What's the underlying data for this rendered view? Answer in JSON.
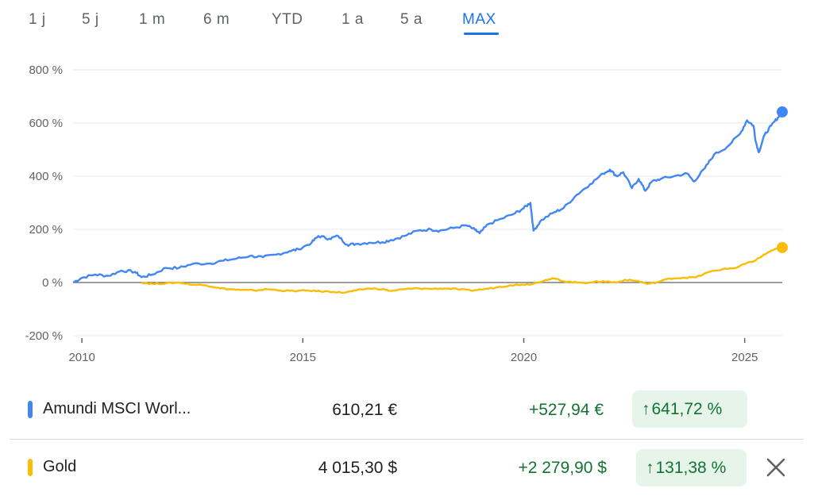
{
  "tabs": [
    {
      "label": "1 j",
      "active": false
    },
    {
      "label": "5 j",
      "active": false
    },
    {
      "label": "1 m",
      "active": false
    },
    {
      "label": "6 m",
      "active": false
    },
    {
      "label": "YTD",
      "active": false
    },
    {
      "label": "1 a",
      "active": false
    },
    {
      "label": "5 a",
      "active": false
    },
    {
      "label": "MAX",
      "active": true
    }
  ],
  "colors": {
    "accent": "#1a73e8",
    "series_msci": "#4285f4",
    "series_gold": "#fbbc04",
    "positive": "#137333",
    "positive_bg": "#e6f4ea"
  },
  "chart_data": {
    "type": "line",
    "title": "",
    "xlabel": "",
    "ylabel": "",
    "x_ticks": [
      2010,
      2015,
      2020,
      2025
    ],
    "x_range": [
      2009.8,
      2025.85
    ],
    "y_ticks": [
      800,
      600,
      400,
      200,
      0,
      -200
    ],
    "y_tick_labels": [
      "800 %",
      "600 %",
      "400 %",
      "200 %",
      "0 %",
      "-200 %"
    ],
    "ylim": [
      -200,
      800
    ],
    "grid": true,
    "zero_line": true,
    "series": [
      {
        "name": "Amundi MSCI Worl...",
        "color": "#4285f4",
        "points": [
          [
            2009.8,
            0
          ],
          [
            2010.0,
            18
          ],
          [
            2010.3,
            30
          ],
          [
            2010.6,
            25
          ],
          [
            2010.9,
            45
          ],
          [
            2011.2,
            40
          ],
          [
            2011.35,
            20
          ],
          [
            2011.6,
            30
          ],
          [
            2011.9,
            55
          ],
          [
            2012.2,
            55
          ],
          [
            2012.5,
            70
          ],
          [
            2012.9,
            72
          ],
          [
            2013.2,
            82
          ],
          [
            2013.5,
            90
          ],
          [
            2013.8,
            100
          ],
          [
            2014.1,
            95
          ],
          [
            2014.4,
            105
          ],
          [
            2014.7,
            118
          ],
          [
            2014.9,
            125
          ],
          [
            2015.2,
            150
          ],
          [
            2015.35,
            175
          ],
          [
            2015.6,
            165
          ],
          [
            2015.8,
            175
          ],
          [
            2016.0,
            142
          ],
          [
            2016.2,
            145
          ],
          [
            2016.5,
            150
          ],
          [
            2016.8,
            152
          ],
          [
            2017.0,
            160
          ],
          [
            2017.3,
            175
          ],
          [
            2017.6,
            195
          ],
          [
            2017.9,
            200
          ],
          [
            2018.1,
            195
          ],
          [
            2018.4,
            205
          ],
          [
            2018.7,
            215
          ],
          [
            2018.9,
            198
          ],
          [
            2019.0,
            185
          ],
          [
            2019.2,
            220
          ],
          [
            2019.5,
            240
          ],
          [
            2019.8,
            260
          ],
          [
            2020.0,
            280
          ],
          [
            2020.15,
            300
          ],
          [
            2020.22,
            195
          ],
          [
            2020.4,
            235
          ],
          [
            2020.7,
            265
          ],
          [
            2020.9,
            280
          ],
          [
            2021.2,
            330
          ],
          [
            2021.5,
            370
          ],
          [
            2021.8,
            410
          ],
          [
            2021.95,
            425
          ],
          [
            2022.1,
            400
          ],
          [
            2022.25,
            415
          ],
          [
            2022.45,
            355
          ],
          [
            2022.6,
            390
          ],
          [
            2022.75,
            345
          ],
          [
            2022.9,
            380
          ],
          [
            2023.1,
            390
          ],
          [
            2023.4,
            400
          ],
          [
            2023.7,
            410
          ],
          [
            2023.85,
            380
          ],
          [
            2024.1,
            430
          ],
          [
            2024.3,
            480
          ],
          [
            2024.6,
            510
          ],
          [
            2024.9,
            560
          ],
          [
            2025.05,
            610
          ],
          [
            2025.2,
            590
          ],
          [
            2025.25,
            530
          ],
          [
            2025.32,
            490
          ],
          [
            2025.45,
            555
          ],
          [
            2025.6,
            590
          ],
          [
            2025.75,
            620
          ],
          [
            2025.85,
            641.72
          ]
        ]
      },
      {
        "name": "Gold",
        "color": "#fbbc04",
        "points": [
          [
            2011.35,
            0
          ],
          [
            2011.6,
            -5
          ],
          [
            2011.9,
            -3
          ],
          [
            2012.2,
            0
          ],
          [
            2012.5,
            -8
          ],
          [
            2012.8,
            -10
          ],
          [
            2013.1,
            -20
          ],
          [
            2013.3,
            -25
          ],
          [
            2013.6,
            -28
          ],
          [
            2013.9,
            -30
          ],
          [
            2014.2,
            -25
          ],
          [
            2014.5,
            -30
          ],
          [
            2014.8,
            -32
          ],
          [
            2015.1,
            -30
          ],
          [
            2015.4,
            -33
          ],
          [
            2015.7,
            -35
          ],
          [
            2015.95,
            -38
          ],
          [
            2016.2,
            -30
          ],
          [
            2016.5,
            -22
          ],
          [
            2016.8,
            -25
          ],
          [
            2017.0,
            -32
          ],
          [
            2017.3,
            -25
          ],
          [
            2017.6,
            -22
          ],
          [
            2017.9,
            -24
          ],
          [
            2018.2,
            -22
          ],
          [
            2018.5,
            -25
          ],
          [
            2018.8,
            -30
          ],
          [
            2019.1,
            -25
          ],
          [
            2019.4,
            -18
          ],
          [
            2019.7,
            -10
          ],
          [
            2019.95,
            -8
          ],
          [
            2020.2,
            -5
          ],
          [
            2020.5,
            10
          ],
          [
            2020.7,
            15
          ],
          [
            2020.9,
            5
          ],
          [
            2021.2,
            0
          ],
          [
            2021.5,
            0
          ],
          [
            2021.8,
            5
          ],
          [
            2022.1,
            0
          ],
          [
            2022.3,
            10
          ],
          [
            2022.6,
            5
          ],
          [
            2022.8,
            -5
          ],
          [
            2023.0,
            0
          ],
          [
            2023.3,
            15
          ],
          [
            2023.6,
            18
          ],
          [
            2023.9,
            20
          ],
          [
            2024.2,
            40
          ],
          [
            2024.5,
            50
          ],
          [
            2024.8,
            55
          ],
          [
            2025.0,
            70
          ],
          [
            2025.2,
            80
          ],
          [
            2025.4,
            100
          ],
          [
            2025.6,
            120
          ],
          [
            2025.85,
            131.38
          ]
        ]
      }
    ]
  },
  "rows": [
    {
      "name": "Amundi MSCI Worl...",
      "price": "610,21 €",
      "change": "+527,94 €",
      "pct_arrow": "↑",
      "pct": "641,72 %"
    },
    {
      "name": "Gold",
      "price": "4 015,30 $",
      "change": "+2 279,90 $",
      "pct_arrow": "↑",
      "pct": "131,38 %"
    }
  ]
}
